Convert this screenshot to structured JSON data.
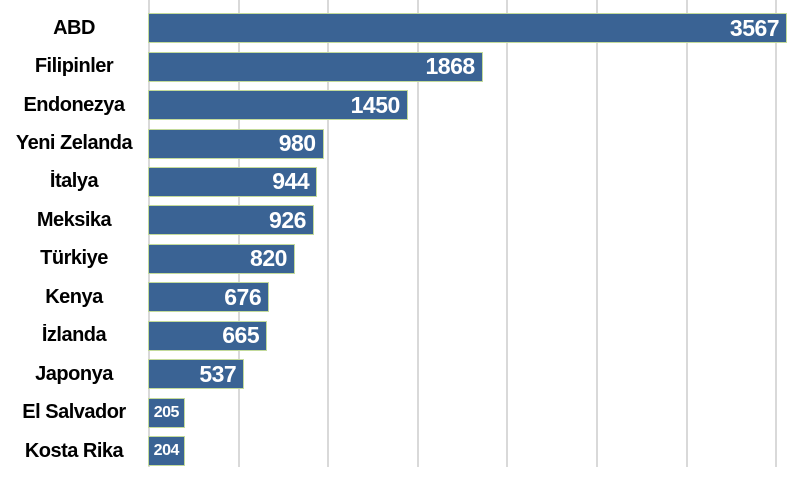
{
  "chart_data": {
    "type": "bar",
    "orientation": "horizontal",
    "title": "",
    "xlabel": "",
    "ylabel": "",
    "categories": [
      "ABD",
      "Filipinler",
      "Endonezya",
      "Yeni Zelanda",
      "İtalya",
      "Meksika",
      "Türkiye",
      "Kenya",
      "İzlanda",
      "Japonya",
      "El Salvador",
      "Kosta Rika"
    ],
    "values": [
      3567,
      1868,
      1450,
      980,
      944,
      926,
      820,
      676,
      665,
      537,
      205,
      204
    ],
    "value_labels": [
      "3567",
      "1868",
      "1450",
      "980",
      "944",
      "926",
      "820",
      "676",
      "665",
      "537",
      "205",
      "204"
    ],
    "xlim": [
      0,
      3600
    ],
    "gridline_step": 500,
    "grid": true,
    "legend": "none",
    "colors": {
      "bar_fill": "#3A6394",
      "bar_border": "#C3DA9B",
      "gridline": "#D9D9D9",
      "category_label": "#000000",
      "value_label": "#FFFFFF",
      "background": "#FFFFFF"
    }
  }
}
